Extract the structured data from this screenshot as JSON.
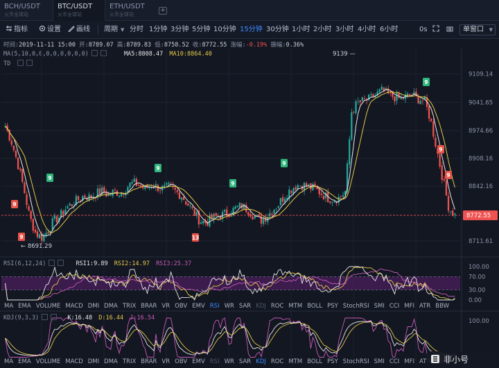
{
  "symbol_tabs": [
    {
      "name": "BCH/USDT",
      "sub": "火币全球站",
      "active": false
    },
    {
      "name": "BTC/USDT",
      "sub": "火币全球站",
      "active": true
    },
    {
      "name": "ETH/USDT",
      "sub": "火币全球站",
      "active": false
    }
  ],
  "toolbar": {
    "indicators": "指标",
    "settings": "设置",
    "draw": "画线",
    "period": "周期",
    "intervals": [
      "分时",
      "1分钟",
      "3分钟",
      "5分钟",
      "10分钟",
      "15分钟",
      "30分钟",
      "1小时",
      "2小时",
      "3小时",
      "4小时",
      "6小时"
    ],
    "selected_interval": "15分钟",
    "zero_s": "0s",
    "window_mode": "单窗口"
  },
  "ohlc": {
    "time_label": "时间:",
    "time": "2019-11-11 15:00",
    "open_label": "开:",
    "open": "8789.07",
    "high_label": "高:",
    "high": "8789.83",
    "low_label": "低:",
    "low": "8758.52",
    "close_label": "收:",
    "close": "8772.55",
    "change_label": "涨幅:",
    "change": "-0.19%",
    "amplitude_label": "振幅:",
    "amplitude": "0.36%"
  },
  "ma": {
    "label": "MA(5,10,0,0,0,0,0,0,0,0)",
    "ma5_label": "MA5:",
    "ma5": "8808.47",
    "ma10_label": "MA10:",
    "ma10": "8864.40"
  },
  "td_label": "TD",
  "price_axis": [
    "9109.14",
    "9041.65",
    "8974.66",
    "8908.16",
    "8842.16",
    "8711.61"
  ],
  "current_price": "8772.55",
  "high_marker": "9139",
  "low_marker": "8691.29",
  "rsi": {
    "label": "RSI(6,12,24)",
    "rsi1_label": "RSI1:",
    "rsi1": "9.89",
    "rsi2_label": "RSI2:",
    "rsi2": "14.97",
    "rsi3_label": "RSI3:",
    "rsi3": "25.37",
    "axis": [
      "100.00",
      "70.00",
      "30.00",
      "0.00"
    ]
  },
  "kdj": {
    "label": "KDJ(9,3,3)",
    "k_label": "K:",
    "k": "16.48",
    "d_label": "D:",
    "d": "16.44",
    "j_label": "J:",
    "j": "16.54",
    "axis": [
      "100.00"
    ]
  },
  "indicator_menu": [
    "MA",
    "EMA",
    "VOLUME",
    "MACD",
    "DMI",
    "DMA",
    "TRIX",
    "BRAR",
    "VR",
    "OBV",
    "EMV",
    "RSI",
    "WR",
    "SAR",
    "KDJ",
    "ROC",
    "MTM",
    "BOLL",
    "PSY",
    "StochRSI",
    "SMI",
    "CCI",
    "MFI",
    "ATR",
    "BBW"
  ],
  "watermark": "非小号",
  "colors": {
    "bg": "#131722",
    "up": "#26a69a",
    "down": "#ef5350",
    "accent": "#3d8bff",
    "ma5": "#e8e8e8",
    "ma10": "#e6c84a",
    "rsi3": "#c75ab8",
    "td_badge_up": "#2eb67d",
    "td_badge_down": "#e8534a"
  },
  "chart_data": {
    "type": "candlestick",
    "interval": "15分钟",
    "price_range": [
      8680,
      9160
    ],
    "close_path": [
      8985,
      8950,
      8900,
      8840,
      8770,
      8730,
      8720,
      8735,
      8760,
      8770,
      8790,
      8800,
      8810,
      8820,
      8815,
      8825,
      8830,
      8820,
      8830,
      8825,
      8840,
      8850,
      8845,
      8835,
      8845,
      8840,
      8835,
      8840,
      8830,
      8820,
      8800,
      8780,
      8760,
      8755,
      8765,
      8770,
      8775,
      8780,
      8790,
      8795,
      8785,
      8770,
      8760,
      8770,
      8785,
      8800,
      8820,
      8835,
      8845,
      8845,
      8840,
      8835,
      8825,
      8815,
      8810,
      8815,
      8830,
      9020,
      9040,
      9045,
      9050,
      9060,
      9070,
      9060,
      9055,
      9050,
      9055,
      9060,
      9050,
      9045,
      9000,
      8930,
      8860,
      8790,
      8772.55
    ],
    "td_badges": [
      "9",
      "9",
      "9",
      "9",
      "9",
      "9",
      "9",
      "13",
      "9",
      "9",
      "13"
    ]
  }
}
